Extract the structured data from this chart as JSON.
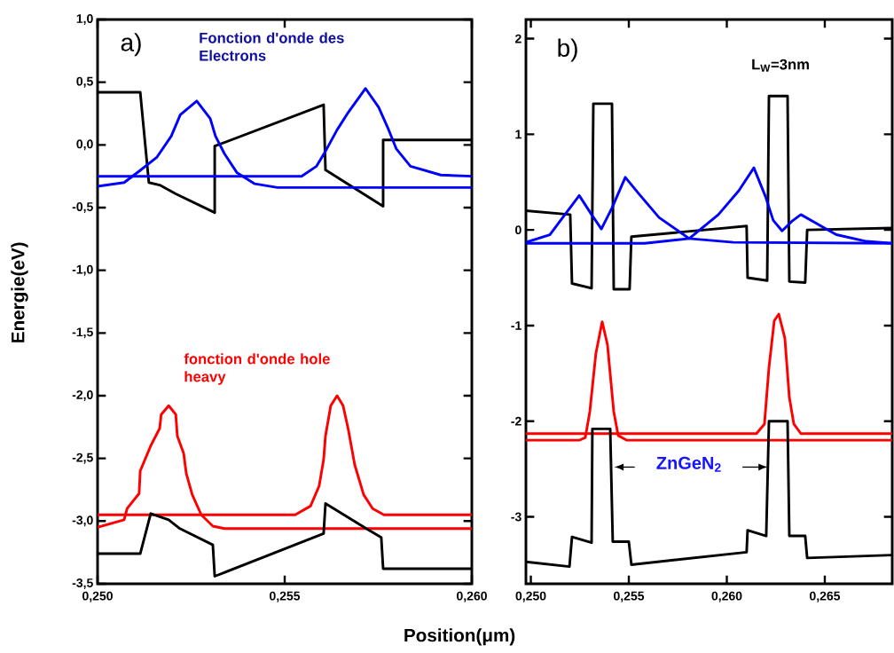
{
  "chart_data": [
    {
      "type": "line",
      "xlabel": "Position(μm)",
      "ylabel": "Energie(eV)",
      "xlim": [
        0.25,
        0.26
      ],
      "ylim": [
        -3.5,
        1.0
      ],
      "xticks": [
        {
          "value": 0.25,
          "label": "0,250"
        },
        {
          "value": 0.255,
          "label": "0,255"
        },
        {
          "value": 0.26,
          "label": "0,260"
        }
      ],
      "yticks": [
        {
          "value": 1.0,
          "label": "1,0"
        },
        {
          "value": 0.5,
          "label": "0,5"
        },
        {
          "value": 0.0,
          "label": "0,0"
        },
        {
          "value": -0.5,
          "label": "-0,5"
        },
        {
          "value": -1.0,
          "label": "-1,0"
        },
        {
          "value": -1.5,
          "label": "-1,5"
        },
        {
          "value": -2.0,
          "label": "-2,0"
        },
        {
          "value": -2.5,
          "label": "-2,5"
        },
        {
          "value": -3.0,
          "label": "-3,0"
        },
        {
          "value": -3.5,
          "label": "-3,5"
        }
      ],
      "annotations": [
        "a)",
        "Fonction d'onde des Electrons",
        "fonction d'onde hole heavy"
      ],
      "series": [
        {
          "color": "#000000",
          "x": [
            0.25,
            0.25114,
            0.25137,
            0.25166,
            0.25209,
            0.25313,
            0.25313,
            0.25604,
            0.25609,
            0.25763,
            0.25763,
            0.26
          ],
          "values": [
            0.42,
            0.42,
            -0.3,
            -0.32,
            -0.39,
            -0.54,
            -0.01,
            0.32,
            -0.2,
            -0.49,
            0.04,
            0.04
          ]
        },
        {
          "color": "#0000ff",
          "x": [
            0.25,
            0.25071,
            0.25111,
            0.25158,
            0.25197,
            0.25221,
            0.25265,
            0.25301,
            0.25315,
            0.25339,
            0.25372,
            0.2542,
            0.25481,
            0.26
          ],
          "values": [
            -0.33,
            -0.3,
            -0.21,
            -0.1,
            0.07,
            0.24,
            0.35,
            0.21,
            0.07,
            -0.07,
            -0.22,
            -0.31,
            -0.34,
            -0.34
          ]
        },
        {
          "color": "#0000ff",
          "x": [
            0.25,
            0.25545,
            0.25585,
            0.25609,
            0.2564,
            0.2567,
            0.25716,
            0.25751,
            0.25775,
            0.25798,
            0.25836,
            0.25917,
            0.26
          ],
          "values": [
            -0.25,
            -0.25,
            -0.17,
            -0.05,
            0.12,
            0.26,
            0.45,
            0.3,
            0.14,
            -0.03,
            -0.17,
            -0.24,
            -0.25
          ]
        },
        {
          "color": "#ff0000",
          "x": [
            0.25,
            0.25071,
            0.25079,
            0.25111,
            0.25114,
            0.25142,
            0.25166,
            0.2517,
            0.2519,
            0.25209,
            0.25213,
            0.2523,
            0.25237,
            0.25253,
            0.25277,
            0.25308,
            0.25339,
            0.26
          ],
          "values": [
            -3.05,
            -2.99,
            -2.9,
            -2.78,
            -2.6,
            -2.4,
            -2.26,
            -2.15,
            -2.08,
            -2.15,
            -2.32,
            -2.46,
            -2.62,
            -2.79,
            -2.95,
            -3.04,
            -3.06,
            -3.06
          ]
        },
        {
          "color": "#ff0000",
          "x": [
            0.25,
            0.25528,
            0.25569,
            0.25592,
            0.25604,
            0.25609,
            0.25623,
            0.2564,
            0.25656,
            0.2567,
            0.25687,
            0.25711,
            0.25735,
            0.25765,
            0.26
          ],
          "values": [
            -2.95,
            -2.95,
            -2.88,
            -2.72,
            -2.51,
            -2.32,
            -2.08,
            -2.0,
            -2.08,
            -2.27,
            -2.55,
            -2.79,
            -2.9,
            -2.95,
            -2.95
          ]
        },
        {
          "color": "#000000",
          "x": [
            0.25,
            0.25114,
            0.25142,
            0.2519,
            0.2522,
            0.25308,
            0.25313,
            0.25604,
            0.25609,
            0.25718,
            0.25758,
            0.25763,
            0.26
          ],
          "values": [
            -3.26,
            -3.26,
            -2.94,
            -2.99,
            -3.06,
            -3.19,
            -3.44,
            -3.1,
            -2.86,
            -3.06,
            -3.13,
            -3.38,
            -3.38
          ]
        }
      ]
    },
    {
      "type": "line",
      "xlim": [
        0.24975,
        0.26844
      ],
      "ylim": [
        -3.7,
        2.2
      ],
      "xticks": [
        {
          "value": 0.25,
          "label": "0,250"
        },
        {
          "value": 0.255,
          "label": "0,255"
        },
        {
          "value": 0.26,
          "label": "0,260"
        },
        {
          "value": 0.265,
          "label": "0,265"
        }
      ],
      "yticks": [
        -3,
        -2,
        -1,
        0,
        1,
        2
      ],
      "annotations": [
        "b)",
        "L$_{W}$=3nm",
        "ZnGeN$_{2}$"
      ],
      "series": [
        {
          "color": "#000000",
          "x": [
            0.24975,
            0.25201,
            0.2521,
            0.2531,
            0.25319,
            0.25414,
            0.25423,
            0.25504,
            0.25513,
            0.26101,
            0.26106,
            0.26206,
            0.26215,
            0.2631,
            0.26319,
            0.264,
            0.2641,
            0.26844
          ],
          "values": [
            0.2,
            0.16,
            -0.56,
            -0.61,
            1.32,
            1.32,
            -0.62,
            -0.62,
            -0.07,
            0.04,
            -0.5,
            -0.53,
            1.4,
            1.4,
            -0.54,
            -0.55,
            0.0,
            0.02
          ]
        },
        {
          "color": "#0000ff",
          "x": [
            0.24975,
            0.25097,
            0.25174,
            0.25247,
            0.2531,
            0.2536,
            0.25414,
            0.25482,
            0.2555,
            0.25654,
            0.25808,
            0.26034,
            0.26844
          ],
          "values": [
            -0.13,
            -0.05,
            0.16,
            0.36,
            0.16,
            0.01,
            0.23,
            0.55,
            0.38,
            0.13,
            -0.09,
            -0.13,
            -0.14
          ]
        },
        {
          "color": "#0000ff",
          "x": [
            0.24975,
            0.25581,
            0.25808,
            0.25957,
            0.26061,
            0.26138,
            0.26197,
            0.26237,
            0.26282,
            0.26332,
            0.26378,
            0.26455,
            0.26559,
            0.26713,
            0.26844
          ],
          "values": [
            -0.14,
            -0.14,
            -0.09,
            0.16,
            0.41,
            0.65,
            0.35,
            0.1,
            -0.01,
            0.09,
            0.16,
            0.07,
            -0.05,
            -0.12,
            -0.14
          ]
        },
        {
          "color": "#ff0000",
          "x": [
            0.24975,
            0.25247,
            0.25278,
            0.25301,
            0.25332,
            0.25364,
            0.25391,
            0.25423,
            0.25446,
            0.2549,
            0.26844
          ],
          "values": [
            -2.2,
            -2.2,
            -2.17,
            -1.9,
            -1.29,
            -0.96,
            -1.2,
            -1.9,
            -2.15,
            -2.2,
            -2.2
          ]
        },
        {
          "color": "#ff0000",
          "x": [
            0.24975,
            0.26151,
            0.26192,
            0.26215,
            0.26242,
            0.26265,
            0.26296,
            0.26319,
            0.26342,
            0.26378,
            0.26844
          ],
          "values": [
            -2.13,
            -2.13,
            -2.03,
            -1.44,
            -0.95,
            -0.88,
            -1.13,
            -1.75,
            -2.03,
            -2.13,
            -2.13
          ]
        },
        {
          "color": "#000000",
          "x": [
            0.24975,
            0.25197,
            0.2521,
            0.2531,
            0.25314,
            0.25405,
            0.25418,
            0.255,
            0.25513,
            0.26101,
            0.26106,
            0.26201,
            0.26215,
            0.2631,
            0.26319,
            0.264,
            0.2641,
            0.26844
          ],
          "values": [
            -3.47,
            -3.52,
            -3.21,
            -3.27,
            -2.08,
            -2.08,
            -3.26,
            -3.26,
            -3.5,
            -3.37,
            -3.14,
            -3.2,
            -2.0,
            -2.0,
            -3.2,
            -3.2,
            -3.43,
            -3.4
          ]
        }
      ]
    }
  ]
}
